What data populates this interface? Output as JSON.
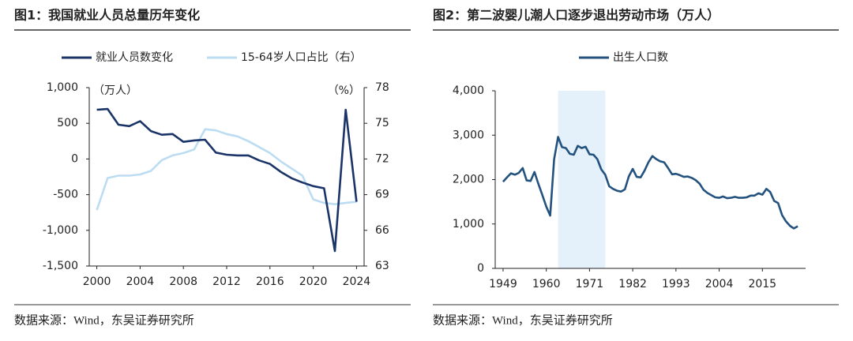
{
  "chart_data": [
    {
      "type": "line",
      "title": "图1：我国就业人员总量历年变化",
      "unit_left": "（万人）",
      "unit_right": "（%）",
      "source": "数据来源：Wind，东吴证券研究所",
      "x": [
        2000,
        2001,
        2002,
        2003,
        2004,
        2005,
        2006,
        2007,
        2008,
        2009,
        2010,
        2011,
        2012,
        2013,
        2014,
        2015,
        2016,
        2017,
        2018,
        2019,
        2020,
        2021,
        2022,
        2023,
        2024
      ],
      "xlim": [
        1999.3,
        2024.7
      ],
      "xticks": [
        2000,
        2004,
        2008,
        2012,
        2016,
        2020,
        2024
      ],
      "ylim": [
        -1500,
        1000
      ],
      "yticks": [
        {
          "value": -1500,
          "label": "-1,500"
        },
        {
          "value": -1000,
          "label": "-1,000"
        },
        -500,
        0,
        500,
        {
          "value": 1000,
          "label": "1,000"
        }
      ],
      "y2lim": [
        63,
        78
      ],
      "y2ticks": [
        63,
        66,
        69,
        72,
        75,
        78
      ],
      "series": [
        {
          "name": "就业人员数变化",
          "color": "#1b3468",
          "values": [
            690,
            700,
            480,
            460,
            530,
            390,
            340,
            350,
            240,
            260,
            270,
            90,
            60,
            50,
            50,
            -20,
            -70,
            -180,
            -270,
            -330,
            -380,
            -410,
            -1290,
            690,
            -600
          ]
        },
        {
          "name": "15-64岁人口占比（右）",
          "color": "#bcdcf2",
          "axis": "y2",
          "values": [
            67.7,
            70.4,
            70.6,
            70.6,
            70.7,
            71.0,
            71.9,
            72.3,
            72.5,
            72.8,
            74.5,
            74.4,
            74.1,
            73.9,
            73.5,
            73.0,
            72.5,
            71.8,
            71.2,
            70.6,
            68.6,
            68.3,
            68.2,
            68.3,
            68.4
          ]
        }
      ]
    },
    {
      "type": "line",
      "title": "图2：第二波婴儿潮人口逐步退出劳动市场（万人）",
      "source": "数据来源：Wind，东吴证券研究所",
      "x": [
        1949,
        1950,
        1951,
        1952,
        1953,
        1954,
        1955,
        1956,
        1957,
        1958,
        1959,
        1960,
        1961,
        1962,
        1963,
        1964,
        1965,
        1966,
        1967,
        1968,
        1969,
        1970,
        1971,
        1972,
        1973,
        1974,
        1975,
        1976,
        1977,
        1978,
        1979,
        1980,
        1981,
        1982,
        1983,
        1984,
        1985,
        1986,
        1987,
        1988,
        1989,
        1990,
        1991,
        1992,
        1993,
        1994,
        1995,
        1996,
        1997,
        1998,
        1999,
        2000,
        2001,
        2002,
        2003,
        2004,
        2005,
        2006,
        2007,
        2008,
        2009,
        2010,
        2011,
        2012,
        2013,
        2014,
        2015,
        2016,
        2017,
        2018,
        2019,
        2020,
        2021,
        2022,
        2023,
        2024
      ],
      "xlim": [
        1947,
        2026
      ],
      "xticks": [
        1949,
        1960,
        1971,
        1982,
        1993,
        2004,
        2015
      ],
      "ylim": [
        0,
        4000
      ],
      "yticks": [
        0,
        {
          "value": 1000,
          "label": "1,000"
        },
        {
          "value": 2000,
          "label": "2,000"
        },
        {
          "value": 3000,
          "label": "3,000"
        },
        {
          "value": 4000,
          "label": "4,000"
        }
      ],
      "highlight": [
        1963,
        1975
      ],
      "highlight_color": "#e4f0fa",
      "series": [
        {
          "name": "出生人口数",
          "color": "#24527e",
          "values": [
            1950,
            2050,
            2140,
            2110,
            2150,
            2260,
            1980,
            1970,
            2170,
            1900,
            1650,
            1390,
            1190,
            2460,
            2960,
            2730,
            2710,
            2580,
            2560,
            2760,
            2710,
            2740,
            2570,
            2560,
            2460,
            2230,
            2110,
            1850,
            1790,
            1750,
            1730,
            1780,
            2070,
            2240,
            2060,
            2050,
            2200,
            2390,
            2530,
            2460,
            2410,
            2390,
            2260,
            2120,
            2130,
            2100,
            2060,
            2070,
            2040,
            1990,
            1910,
            1770,
            1700,
            1650,
            1600,
            1590,
            1620,
            1580,
            1590,
            1610,
            1590,
            1590,
            1600,
            1640,
            1640,
            1690,
            1660,
            1790,
            1720,
            1520,
            1470,
            1200,
            1060,
            960,
            900,
            950
          ]
        }
      ]
    }
  ]
}
